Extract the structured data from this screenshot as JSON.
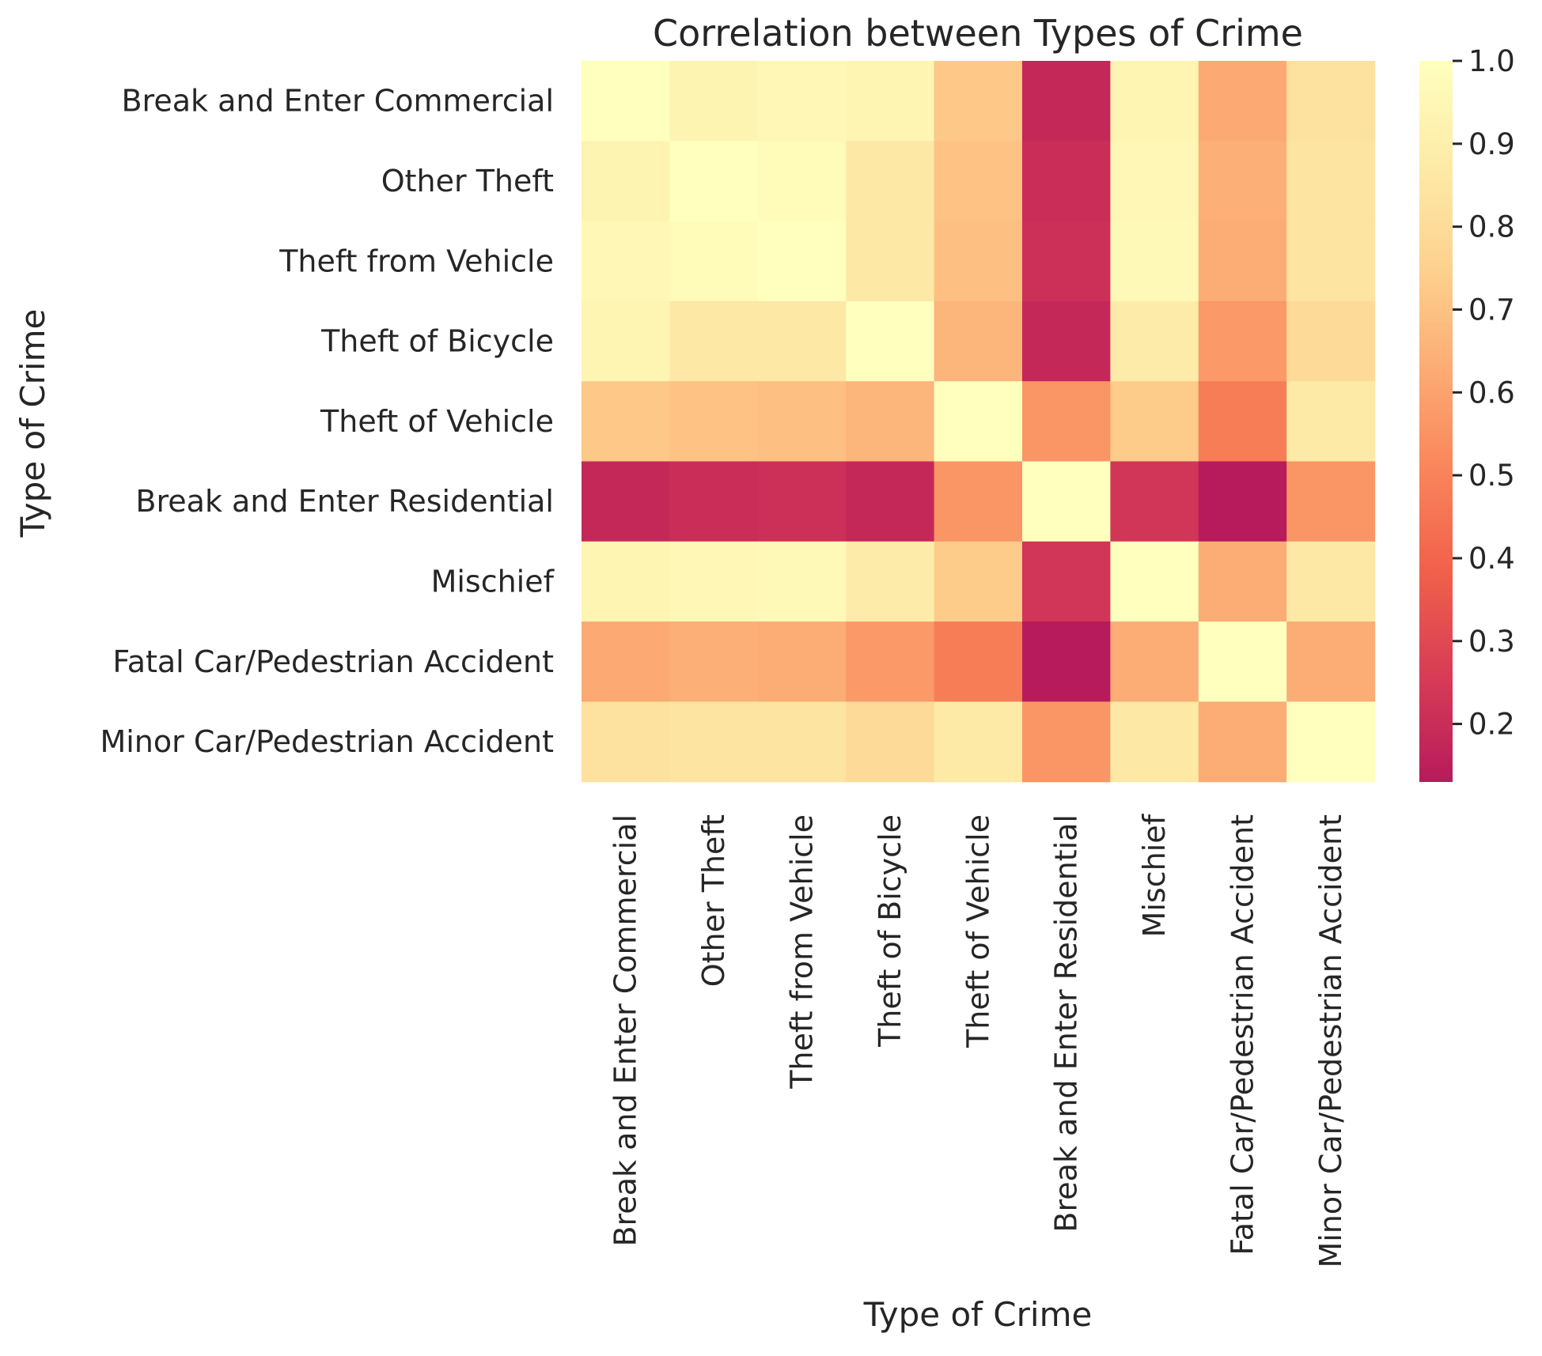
{
  "chart_data": {
    "type": "heatmap",
    "title": "Correlation between Types of Crime",
    "xlabel": "Type of Crime",
    "ylabel": "Type of Crime",
    "categories": [
      "Break and Enter Commercial",
      "Other Theft",
      "Theft from Vehicle",
      "Theft of Bicycle",
      "Theft of Vehicle",
      "Break and Enter Residential",
      "Mischief",
      "Fatal Car/Pedestrian Accident",
      "Minor Car/Pedestrian Accident"
    ],
    "values": [
      [
        1.0,
        0.93,
        0.95,
        0.94,
        0.72,
        0.18,
        0.94,
        0.62,
        0.83
      ],
      [
        0.93,
        1.0,
        0.98,
        0.86,
        0.7,
        0.2,
        0.95,
        0.64,
        0.84
      ],
      [
        0.95,
        0.98,
        1.0,
        0.86,
        0.69,
        0.21,
        0.96,
        0.63,
        0.84
      ],
      [
        0.94,
        0.86,
        0.86,
        1.0,
        0.66,
        0.18,
        0.88,
        0.57,
        0.79
      ],
      [
        0.72,
        0.7,
        0.69,
        0.66,
        1.0,
        0.56,
        0.73,
        0.48,
        0.87
      ],
      [
        0.18,
        0.2,
        0.21,
        0.18,
        0.56,
        1.0,
        0.23,
        0.13,
        0.56
      ],
      [
        0.94,
        0.95,
        0.96,
        0.88,
        0.73,
        0.23,
        1.0,
        0.63,
        0.86
      ],
      [
        0.62,
        0.64,
        0.63,
        0.57,
        0.48,
        0.13,
        0.63,
        1.0,
        0.63
      ],
      [
        0.83,
        0.84,
        0.84,
        0.79,
        0.87,
        0.56,
        0.86,
        0.63,
        1.0
      ]
    ],
    "colorbar": {
      "min": 0.13,
      "max": 1.0,
      "ticks": [
        "0.2",
        "0.3",
        "0.4",
        "0.5",
        "0.6",
        "0.7",
        "0.8",
        "0.9",
        "1.0"
      ]
    },
    "colormap": [
      "#b71b5b",
      "#d73b56",
      "#f05f4b",
      "#f9845a",
      "#fcab74",
      "#fdd28f",
      "#fdeba8",
      "#ffffbe"
    ],
    "grid": false
  }
}
